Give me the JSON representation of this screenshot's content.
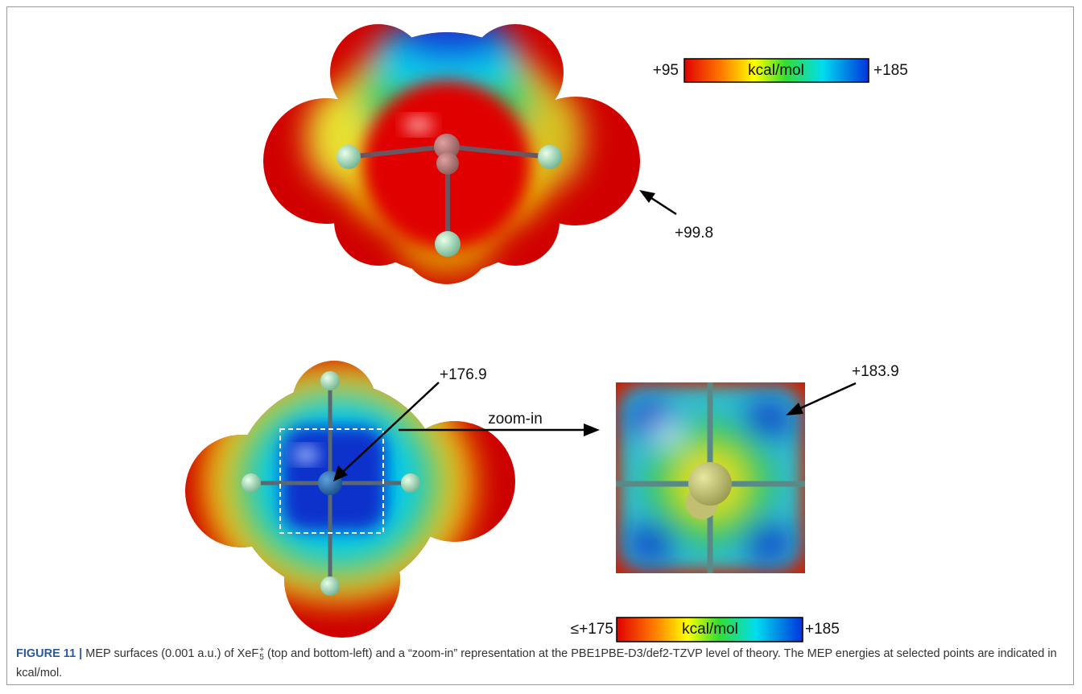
{
  "figure": {
    "top_scale": {
      "min_label": "+95",
      "unit": "kcal/mol",
      "max_label": "+185"
    },
    "top_annotation": "+99.8",
    "bottom_annotation": "+176.9",
    "zoom_label": "zoom-in",
    "zoom_annotation": "+183.9",
    "bottom_scale": {
      "min_label": "≤+175",
      "unit": "kcal/mol",
      "max_label": "+185"
    }
  },
  "caption": {
    "label": "FIGURE 11 |",
    "text_before": "MEP surfaces (0.001 a.u.) of XeF",
    "formula_sub": "5",
    "formula_sup": "+",
    "text_after": " (top and bottom-left) and a “zoom-in” representation at the PBE1PBE-D3/def2-TZVP level of theory. The MEP energies at selected points are indicated in kcal/mol."
  }
}
